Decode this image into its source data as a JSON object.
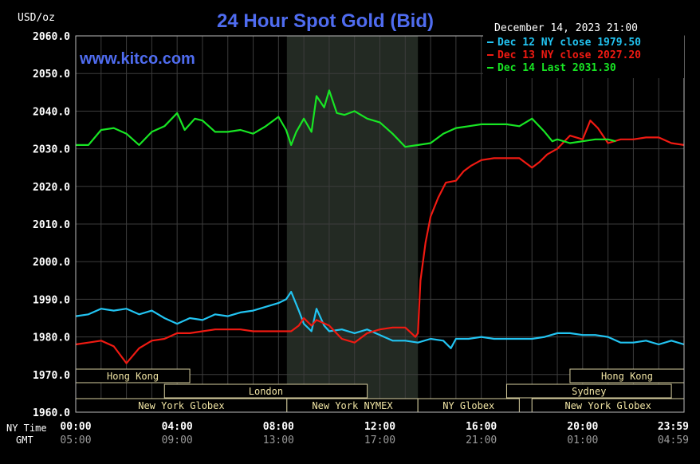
{
  "chart_data": {
    "type": "line",
    "title": "24 Hour Spot Gold (Bid)",
    "unit_label": "USD/oz",
    "timestamp": "December 14, 2023 21:00",
    "watermark": "www.kitco.com",
    "ylim": [
      1960,
      2060
    ],
    "yticks": [
      "2060.0",
      "2050.0",
      "2040.0",
      "2030.0",
      "2020.0",
      "2010.0",
      "2000.0",
      "1990.0",
      "1980.0",
      "1970.0",
      "1960.0"
    ],
    "xlim": [
      0,
      24
    ],
    "grid": true,
    "legend_position": "top-right",
    "x_axis": {
      "row1_label": "NY Time",
      "row2_label": "GMT",
      "ticks": [
        {
          "hour": 0,
          "ny": "00:00",
          "gmt": "05:00"
        },
        {
          "hour": 4,
          "ny": "04:00",
          "gmt": "09:00"
        },
        {
          "hour": 8,
          "ny": "08:00",
          "gmt": "13:00"
        },
        {
          "hour": 12,
          "ny": "12:00",
          "gmt": "17:00"
        },
        {
          "hour": 16,
          "ny": "16:00",
          "gmt": "21:00"
        },
        {
          "hour": 20,
          "ny": "20:00",
          "gmt": "01:00"
        },
        {
          "hour": 23.983,
          "ny": "23:59",
          "gmt": "04:59"
        }
      ]
    },
    "shaded_hours": [
      8.33,
      13.5
    ],
    "sessions": [
      {
        "name": "Hong Kong",
        "start": 0,
        "end": 4.5,
        "row": 0
      },
      {
        "name": "Hong Kong",
        "start": 19.5,
        "end": 24,
        "row": 0
      },
      {
        "name": "London",
        "start": 3.5,
        "end": 11.5,
        "row": 1
      },
      {
        "name": "Sydney",
        "start": 17,
        "end": 23.5,
        "row": 1
      },
      {
        "name": "New York Globex",
        "start": 0,
        "end": 8.33,
        "row": 2
      },
      {
        "name": "New York NYMEX",
        "start": 8.33,
        "end": 13.5,
        "row": 2
      },
      {
        "name": "NY Globex",
        "start": 13.5,
        "end": 17.5,
        "row": 2
      },
      {
        "name": "New York Globex",
        "start": 18,
        "end": 24,
        "row": 2
      }
    ],
    "series": [
      {
        "name": "Dec 12 NY close 1979.50",
        "color": "#22c4f2",
        "x": [
          0,
          0.5,
          1,
          1.5,
          2,
          2.5,
          3,
          3.5,
          4,
          4.5,
          5,
          5.5,
          6,
          6.5,
          7,
          7.5,
          8,
          8.3,
          8.5,
          8.8,
          9,
          9.3,
          9.5,
          9.8,
          10,
          10.5,
          11,
          11.5,
          12,
          12.5,
          13,
          13.5,
          14,
          14.5,
          14.8,
          15,
          15.5,
          16,
          16.5,
          17,
          17.5,
          18,
          18.5,
          19,
          19.5,
          20,
          20.5,
          21,
          21.5,
          22,
          22.5,
          23,
          23.5,
          24
        ],
        "values": [
          1985.5,
          1986,
          1987.5,
          1987,
          1987.5,
          1986,
          1987,
          1985,
          1983.5,
          1985,
          1984.5,
          1986,
          1985.5,
          1986.5,
          1987,
          1988,
          1989,
          1990,
          1992,
          1987,
          1983.5,
          1981.5,
          1987.5,
          1983,
          1981.5,
          1982,
          1981,
          1982,
          1980.5,
          1979,
          1979,
          1978.5,
          1979.5,
          1979,
          1977,
          1979.5,
          1979.5,
          1980,
          1979.5,
          1979.5,
          1979.5,
          1979.5,
          1980,
          1981,
          1981,
          1980.5,
          1980.5,
          1980,
          1978.5,
          1978.5,
          1979,
          1978,
          1979,
          1978
        ]
      },
      {
        "name": "Dec 13 NY close 2027.20",
        "color": "#f01a12",
        "x": [
          0,
          0.5,
          1,
          1.5,
          2,
          2.5,
          3,
          3.5,
          4,
          4.5,
          5,
          5.5,
          6,
          6.5,
          7,
          7.5,
          8,
          8.5,
          8.8,
          9,
          9.3,
          9.5,
          10,
          10.5,
          11,
          11.5,
          12,
          12.5,
          13,
          13.4,
          13.5,
          13.6,
          13.8,
          14,
          14.3,
          14.6,
          15,
          15.3,
          15.6,
          16,
          16.5,
          17,
          17.5,
          18,
          18.3,
          18.6,
          19,
          19.5,
          20,
          20.3,
          20.6,
          21,
          21.5,
          22,
          22.5,
          23,
          23.5,
          24
        ],
        "values": [
          1978,
          1978.5,
          1979,
          1977.5,
          1973,
          1977,
          1979,
          1979.5,
          1981,
          1981,
          1981.5,
          1982,
          1982,
          1982,
          1981.5,
          1981.5,
          1981.5,
          1981.5,
          1983,
          1985,
          1983,
          1984.5,
          1983,
          1979.5,
          1978.5,
          1981,
          1982,
          1982.5,
          1982.5,
          1980,
          1981,
          1995,
          2005,
          2012,
          2017,
          2021,
          2021.5,
          2024,
          2025.5,
          2027,
          2027.5,
          2027.5,
          2027.5,
          2025,
          2026.5,
          2028.5,
          2030,
          2033.5,
          2032.5,
          2037.5,
          2035.5,
          2031.5,
          2032.5,
          2032.5,
          2033,
          2033,
          2031.5,
          2031
        ]
      },
      {
        "name": "Dec 14 Last 2031.30",
        "color": "#18e624",
        "x": [
          0,
          0.5,
          1,
          1.5,
          2,
          2.5,
          3,
          3.5,
          4,
          4.3,
          4.7,
          5,
          5.5,
          6,
          6.5,
          7,
          7.5,
          8,
          8.3,
          8.5,
          8.7,
          9,
          9.3,
          9.5,
          9.8,
          10,
          10.3,
          10.6,
          11,
          11.5,
          12,
          12.5,
          13,
          13.5,
          14,
          14.5,
          15,
          15.5,
          16,
          16.5,
          17,
          17.5,
          18,
          18.5,
          18.8,
          19,
          19.5,
          20,
          20.5,
          21,
          21.3
        ],
        "values": [
          2031,
          2031,
          2035,
          2035.5,
          2034,
          2031,
          2034.5,
          2036,
          2039.5,
          2035,
          2038,
          2037.5,
          2034.5,
          2034.5,
          2035,
          2034,
          2036,
          2038.5,
          2035,
          2031,
          2034.5,
          2038,
          2034.5,
          2044,
          2041,
          2045.5,
          2039.5,
          2039,
          2040,
          2038,
          2037,
          2034,
          2030.5,
          2031,
          2031.5,
          2034,
          2035.5,
          2036,
          2036.5,
          2036.5,
          2036.5,
          2036,
          2038,
          2034.5,
          2032,
          2032.5,
          2031.5,
          2032,
          2032.5,
          2032.5,
          2032
        ]
      }
    ]
  }
}
